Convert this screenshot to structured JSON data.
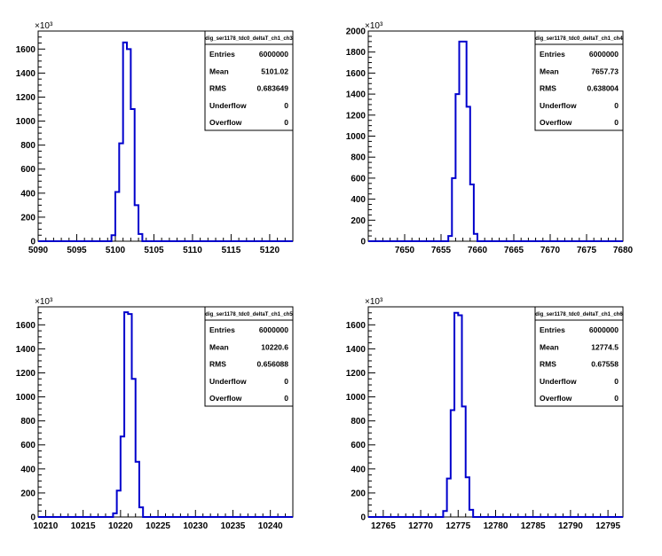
{
  "chart_data": [
    {
      "type": "bar",
      "title": "dig_ser1178_tdc0_deltaT_ch1_ch3",
      "xlim": [
        5090,
        5123
      ],
      "ylim": [
        0,
        1750
      ],
      "y_scale_label": "×10³",
      "x_ticks": [
        5090,
        5095,
        5100,
        5105,
        5110,
        5115,
        5120
      ],
      "y_ticks": [
        0,
        200,
        400,
        600,
        800,
        1000,
        1200,
        1400,
        1600
      ],
      "grid": false,
      "legend": "top-right",
      "bin_width": 0.5,
      "bins": [
        [
          5099.5,
          50
        ],
        [
          5100.0,
          410
        ],
        [
          5100.5,
          815
        ],
        [
          5101.0,
          1655
        ],
        [
          5101.5,
          1600
        ],
        [
          5102.0,
          1100
        ],
        [
          5102.5,
          300
        ],
        [
          5103.0,
          60
        ]
      ],
      "stats": [
        {
          "label": "Entries",
          "value": "6000000"
        },
        {
          "label": "Mean",
          "value": "5101.02"
        },
        {
          "label": "RMS",
          "value": "0.683649"
        },
        {
          "label": "Underflow",
          "value": "0"
        },
        {
          "label": "Overflow",
          "value": "0"
        }
      ]
    },
    {
      "type": "bar",
      "title": "dig_ser1178_tdc0_deltaT_ch1_ch4",
      "xlim": [
        7645,
        7680
      ],
      "ylim": [
        0,
        2000
      ],
      "y_scale_label": "×10³",
      "x_ticks": [
        7650,
        7655,
        7660,
        7665,
        7670,
        7675,
        7680
      ],
      "y_ticks": [
        0,
        200,
        400,
        600,
        800,
        1000,
        1200,
        1400,
        1600,
        1800,
        2000
      ],
      "grid": false,
      "legend": "top-right",
      "bin_width": 0.5,
      "bins": [
        [
          7656.0,
          50
        ],
        [
          7656.5,
          600
        ],
        [
          7657.0,
          1400
        ],
        [
          7657.5,
          1900
        ],
        [
          7658.0,
          1900
        ],
        [
          7658.5,
          1280
        ],
        [
          7659.0,
          540
        ],
        [
          7659.5,
          70
        ]
      ],
      "stats": [
        {
          "label": "Entries",
          "value": "6000000"
        },
        {
          "label": "Mean",
          "value": "7657.73"
        },
        {
          "label": "RMS",
          "value": "0.638004"
        },
        {
          "label": "Underflow",
          "value": "0"
        },
        {
          "label": "Overflow",
          "value": "0"
        }
      ]
    },
    {
      "type": "bar",
      "title": "dig_ser1178_tdc0_deltaT_ch1_ch5",
      "xlim": [
        10209,
        10243
      ],
      "ylim": [
        0,
        1750
      ],
      "y_scale_label": "×10³",
      "x_ticks": [
        10210,
        10215,
        10220,
        10225,
        10230,
        10235,
        10240
      ],
      "y_ticks": [
        0,
        200,
        400,
        600,
        800,
        1000,
        1200,
        1400,
        1600
      ],
      "grid": false,
      "legend": "top-right",
      "bin_width": 0.5,
      "bins": [
        [
          10219.0,
          30
        ],
        [
          10219.5,
          220
        ],
        [
          10220.0,
          670
        ],
        [
          10220.5,
          1705
        ],
        [
          10221.0,
          1690
        ],
        [
          10221.5,
          1150
        ],
        [
          10222.0,
          460
        ],
        [
          10222.5,
          80
        ]
      ],
      "stats": [
        {
          "label": "Entries",
          "value": "6000000"
        },
        {
          "label": "Mean",
          "value": "10220.6"
        },
        {
          "label": "RMS",
          "value": "0.656088"
        },
        {
          "label": "Underflow",
          "value": "0"
        },
        {
          "label": "Overflow",
          "value": "0"
        }
      ]
    },
    {
      "type": "bar",
      "title": "dig_ser1178_tdc0_deltaT_ch1_ch6",
      "xlim": [
        12763,
        12797
      ],
      "ylim": [
        0,
        1750
      ],
      "y_scale_label": "×10³",
      "x_ticks": [
        12765,
        12770,
        12775,
        12780,
        12785,
        12790,
        12795
      ],
      "y_ticks": [
        0,
        200,
        400,
        600,
        800,
        1000,
        1200,
        1400,
        1600
      ],
      "grid": false,
      "legend": "top-right",
      "bin_width": 0.5,
      "bins": [
        [
          12773.0,
          50
        ],
        [
          12773.5,
          320
        ],
        [
          12774.0,
          890
        ],
        [
          12774.5,
          1700
        ],
        [
          12775.0,
          1680
        ],
        [
          12775.5,
          920
        ],
        [
          12776.0,
          330
        ],
        [
          12776.5,
          60
        ]
      ],
      "stats": [
        {
          "label": "Entries",
          "value": "6000000"
        },
        {
          "label": "Mean",
          "value": "12774.5"
        },
        {
          "label": "RMS",
          "value": "0.67558"
        },
        {
          "label": "Underflow",
          "value": "0"
        },
        {
          "label": "Overflow",
          "value": "0"
        }
      ]
    }
  ],
  "colors": {
    "histogram_line": "#0000cc",
    "axis": "#000000",
    "background": "#ffffff"
  }
}
